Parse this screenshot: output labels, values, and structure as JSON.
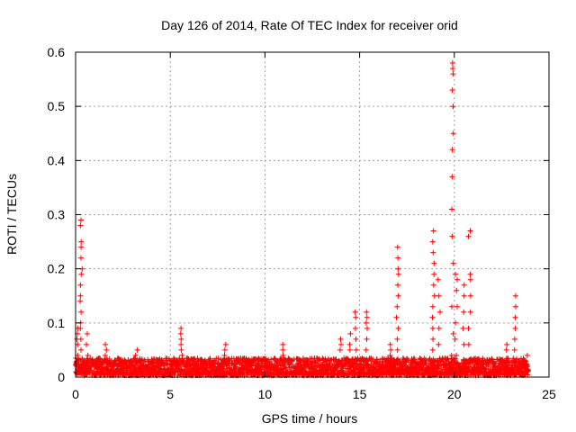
{
  "chart_data": {
    "type": "scatter",
    "title": "Day 126 of 2014, Rate Of TEC Index for receiver orid",
    "xlabel": "GPS time / hours",
    "ylabel": "ROTI / TECUs",
    "xlim": [
      0,
      25
    ],
    "ylim": [
      0,
      0.6
    ],
    "x_ticks": [
      0,
      5,
      10,
      15,
      20,
      25
    ],
    "y_ticks": [
      0,
      0.1,
      0.2,
      0.3,
      0.4,
      0.5,
      0.6
    ],
    "x_tick_labels": [
      "0",
      "5",
      "10",
      "15",
      "20",
      "25"
    ],
    "y_tick_labels": [
      "0",
      "0.1",
      "0.2",
      "0.3",
      "0.4",
      "0.5",
      "0.6"
    ],
    "grid": true,
    "marker": "+",
    "color": "#ff0000",
    "spikes": [
      {
        "x": 0.3,
        "values": [
          0.03,
          0.05,
          0.07,
          0.09,
          0.1,
          0.12,
          0.14,
          0.15,
          0.17,
          0.19,
          0.2,
          0.22,
          0.24,
          0.25,
          0.28,
          0.29
        ]
      },
      {
        "x": 0.1,
        "values": [
          0.02,
          0.04,
          0.06,
          0.07,
          0.08,
          0.09
        ]
      },
      {
        "x": 0.6,
        "values": [
          0.02,
          0.04,
          0.06,
          0.08
        ]
      },
      {
        "x": 1.6,
        "values": [
          0.03,
          0.04,
          0.05,
          0.06
        ]
      },
      {
        "x": 3.2,
        "values": [
          0.03,
          0.04,
          0.05
        ]
      },
      {
        "x": 5.6,
        "values": [
          0.03,
          0.04,
          0.05,
          0.06,
          0.07,
          0.08,
          0.09
        ]
      },
      {
        "x": 7.9,
        "values": [
          0.03,
          0.04,
          0.05,
          0.06
        ]
      },
      {
        "x": 10.9,
        "values": [
          0.03,
          0.04,
          0.05,
          0.06
        ]
      },
      {
        "x": 14.0,
        "values": [
          0.03,
          0.05,
          0.06,
          0.07
        ]
      },
      {
        "x": 14.5,
        "values": [
          0.03,
          0.05,
          0.06,
          0.08
        ]
      },
      {
        "x": 14.8,
        "values": [
          0.03,
          0.05,
          0.07,
          0.09,
          0.11,
          0.12
        ]
      },
      {
        "x": 15.4,
        "values": [
          0.03,
          0.05,
          0.07,
          0.09,
          0.1,
          0.11,
          0.12
        ]
      },
      {
        "x": 16.6,
        "values": [
          0.03,
          0.04,
          0.05,
          0.06
        ]
      },
      {
        "x": 17.0,
        "values": [
          0.03,
          0.05,
          0.07,
          0.09,
          0.11,
          0.13,
          0.15,
          0.17,
          0.19,
          0.2,
          0.22,
          0.24
        ]
      },
      {
        "x": 18.9,
        "values": [
          0.03,
          0.05,
          0.07,
          0.09,
          0.11,
          0.13,
          0.15,
          0.17,
          0.19,
          0.21,
          0.23,
          0.25,
          0.27
        ]
      },
      {
        "x": 19.2,
        "values": [
          0.03,
          0.06,
          0.09,
          0.12,
          0.15,
          0.18
        ]
      },
      {
        "x": 19.9,
        "values": [
          0.04,
          0.08,
          0.13,
          0.21,
          0.26,
          0.31,
          0.37,
          0.42,
          0.45,
          0.5,
          0.53,
          0.56,
          0.57,
          0.58
        ]
      },
      {
        "x": 20.1,
        "values": [
          0.04,
          0.07,
          0.1,
          0.13,
          0.16,
          0.18,
          0.19
        ]
      },
      {
        "x": 20.5,
        "values": [
          0.03,
          0.06,
          0.09,
          0.12,
          0.15,
          0.17
        ]
      },
      {
        "x": 20.8,
        "values": [
          0.03,
          0.06,
          0.09,
          0.12,
          0.15,
          0.18,
          0.19,
          0.26,
          0.27
        ]
      },
      {
        "x": 22.8,
        "values": [
          0.03,
          0.05,
          0.06
        ]
      },
      {
        "x": 23.2,
        "values": [
          0.03,
          0.05,
          0.07,
          0.09,
          0.11,
          0.13,
          0.15
        ]
      },
      {
        "x": 23.8,
        "values": [
          0.02,
          0.03,
          0.04
        ]
      }
    ],
    "baseline_range": [
      0.003,
      0.035
    ],
    "baseline_x_range": [
      0,
      23.9
    ]
  }
}
